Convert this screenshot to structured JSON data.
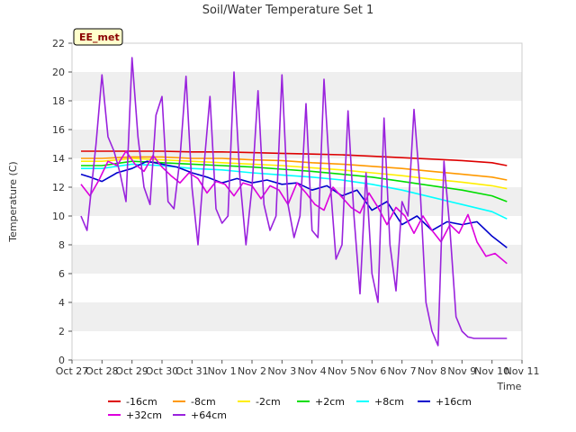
{
  "chart_data": {
    "type": "line",
    "title": "Soil/Water Temperature Set 1",
    "xlabel": "Time",
    "ylabel": "Temperature (C)",
    "site_tag": "EE_met",
    "ylim": [
      0,
      22
    ],
    "yticks": [
      0,
      2,
      4,
      6,
      8,
      10,
      12,
      14,
      16,
      18,
      20,
      22
    ],
    "xlim": [
      0,
      15
    ],
    "xticks": [
      {
        "x": 0,
        "label": "Oct 27"
      },
      {
        "x": 1,
        "label": "Oct 28"
      },
      {
        "x": 2,
        "label": "Oct 29"
      },
      {
        "x": 3,
        "label": "Oct 30"
      },
      {
        "x": 4,
        "label": "Oct 31"
      },
      {
        "x": 5,
        "label": "Nov 1"
      },
      {
        "x": 6,
        "label": "Nov 2"
      },
      {
        "x": 7,
        "label": "Nov 3"
      },
      {
        "x": 8,
        "label": "Nov 4"
      },
      {
        "x": 9,
        "label": "Nov 5"
      },
      {
        "x": 10,
        "label": "Nov 6"
      },
      {
        "x": 11,
        "label": "Nov 7"
      },
      {
        "x": 12,
        "label": "Nov 8"
      },
      {
        "x": 13,
        "label": "Nov 9"
      },
      {
        "x": 14,
        "label": "Nov 10"
      },
      {
        "x": 15,
        "label": "Nov 11"
      }
    ],
    "grid": "horizontal bands",
    "legend_position": "bottom",
    "series": [
      {
        "name": "-16cm",
        "color": "#dd0000",
        "x": [
          0.3,
          1,
          2,
          3,
          4,
          5,
          6,
          7,
          8,
          9,
          10,
          11,
          12,
          13,
          14,
          14.5
        ],
        "y": [
          14.5,
          14.5,
          14.5,
          14.5,
          14.45,
          14.45,
          14.4,
          14.35,
          14.3,
          14.25,
          14.15,
          14.05,
          13.95,
          13.85,
          13.7,
          13.5
        ]
      },
      {
        "name": "-8cm",
        "color": "#ff9900",
        "x": [
          0.3,
          1,
          2,
          3,
          4,
          5,
          6,
          7,
          8,
          9,
          10,
          11,
          12,
          13,
          14,
          14.5
        ],
        "y": [
          14.0,
          14.0,
          14.1,
          14.1,
          14.0,
          14.0,
          13.9,
          13.85,
          13.7,
          13.6,
          13.45,
          13.3,
          13.1,
          12.9,
          12.7,
          12.5
        ]
      },
      {
        "name": "-2cm",
        "color": "#ffee00",
        "x": [
          0.3,
          1,
          2,
          3,
          4,
          5,
          6,
          7,
          8,
          9,
          10,
          11,
          12,
          13,
          14,
          14.5
        ],
        "y": [
          13.8,
          13.8,
          14.0,
          13.9,
          13.8,
          13.7,
          13.6,
          13.5,
          13.35,
          13.2,
          13.0,
          12.8,
          12.55,
          12.35,
          12.1,
          11.9
        ]
      },
      {
        "name": "+2cm",
        "color": "#00dd00",
        "x": [
          0.3,
          1,
          2,
          3,
          4,
          5,
          6,
          7,
          8,
          9,
          10,
          11,
          12,
          13,
          14,
          14.5
        ],
        "y": [
          13.5,
          13.5,
          13.8,
          13.7,
          13.6,
          13.5,
          13.4,
          13.25,
          13.1,
          12.9,
          12.7,
          12.4,
          12.1,
          11.8,
          11.4,
          11.0
        ]
      },
      {
        "name": "+8cm",
        "color": "#00ffff",
        "x": [
          0.3,
          1,
          2,
          3,
          4,
          5,
          6,
          7,
          8,
          9,
          10,
          11,
          12,
          13,
          14,
          14.5
        ],
        "y": [
          13.3,
          13.3,
          13.6,
          13.5,
          13.3,
          13.2,
          13.0,
          12.85,
          12.7,
          12.5,
          12.2,
          11.8,
          11.3,
          10.8,
          10.3,
          9.8
        ]
      },
      {
        "name": "+16cm",
        "color": "#0000cc",
        "x": [
          0.3,
          0.6,
          1,
          1.5,
          2,
          2.5,
          3,
          3.5,
          4,
          4.5,
          5,
          5.5,
          6,
          6.5,
          7,
          7.5,
          8,
          8.5,
          9,
          9.5,
          10,
          10.5,
          11,
          11.5,
          12,
          12.5,
          13,
          13.5,
          14,
          14.5
        ],
        "y": [
          12.9,
          12.7,
          12.4,
          13.0,
          13.3,
          13.8,
          13.6,
          13.4,
          13.0,
          12.7,
          12.3,
          12.6,
          12.3,
          12.5,
          12.2,
          12.3,
          11.8,
          12.1,
          11.4,
          11.8,
          10.4,
          11.0,
          9.4,
          10.0,
          9.0,
          9.6,
          9.4,
          9.6,
          8.6,
          7.8
        ]
      },
      {
        "name": "+32cm",
        "color": "#dd00dd",
        "x": [
          0.3,
          0.6,
          0.9,
          1.2,
          1.5,
          1.8,
          2.1,
          2.4,
          2.7,
          3.0,
          3.3,
          3.6,
          3.9,
          4.2,
          4.5,
          4.8,
          5.1,
          5.4,
          5.7,
          6.0,
          6.3,
          6.6,
          6.9,
          7.2,
          7.5,
          7.8,
          8.1,
          8.4,
          8.7,
          9.0,
          9.3,
          9.6,
          9.9,
          10.2,
          10.5,
          10.8,
          11.1,
          11.4,
          11.7,
          12.0,
          12.3,
          12.6,
          12.9,
          13.2,
          13.5,
          13.8,
          14.1,
          14.5
        ],
        "y": [
          12.2,
          11.4,
          12.5,
          13.8,
          13.5,
          14.5,
          13.6,
          13.1,
          14.2,
          13.4,
          12.8,
          12.3,
          13.0,
          12.6,
          11.6,
          12.4,
          12.2,
          11.4,
          12.3,
          12.1,
          11.2,
          12.1,
          11.8,
          10.8,
          12.3,
          11.6,
          10.8,
          10.4,
          12.0,
          11.3,
          10.6,
          10.2,
          11.6,
          10.6,
          9.4,
          10.6,
          10.0,
          8.8,
          10.0,
          9.0,
          8.2,
          9.4,
          8.8,
          10.1,
          8.2,
          7.2,
          7.4,
          6.7
        ]
      },
      {
        "name": "+64cm",
        "color": "#9922dd",
        "x": [
          0.3,
          0.5,
          0.8,
          1.0,
          1.2,
          1.4,
          1.6,
          1.8,
          2.0,
          2.2,
          2.4,
          2.6,
          2.8,
          3.0,
          3.2,
          3.4,
          3.6,
          3.8,
          4.0,
          4.2,
          4.4,
          4.6,
          4.8,
          5.0,
          5.2,
          5.4,
          5.6,
          5.8,
          6.0,
          6.2,
          6.4,
          6.6,
          6.8,
          7.0,
          7.2,
          7.4,
          7.6,
          7.8,
          8.0,
          8.2,
          8.4,
          8.6,
          8.8,
          9.0,
          9.2,
          9.4,
          9.6,
          9.8,
          10.0,
          10.2,
          10.4,
          10.6,
          10.8,
          11.0,
          11.2,
          11.4,
          11.6,
          11.8,
          12.0,
          12.2,
          12.4,
          12.6,
          12.8,
          13.0,
          13.2,
          13.4,
          13.6,
          13.8,
          14.0,
          14.2,
          14.4,
          14.5
        ],
        "y": [
          10.0,
          9.0,
          15.0,
          19.8,
          15.5,
          14.5,
          13.0,
          11.0,
          21.0,
          15.5,
          12.0,
          10.8,
          17.0,
          18.3,
          11.0,
          10.5,
          14.0,
          19.7,
          12.0,
          8.0,
          13.5,
          18.3,
          10.5,
          9.5,
          10.0,
          20.0,
          12.5,
          8.0,
          12.0,
          18.7,
          10.8,
          9.0,
          10.0,
          19.8,
          10.8,
          8.5,
          10.0,
          17.8,
          9.0,
          8.5,
          19.5,
          12.5,
          7.0,
          8.0,
          17.3,
          10.0,
          4.6,
          13.0,
          6.0,
          4.0,
          16.8,
          8.0,
          4.8,
          11.0,
          10.0,
          17.4,
          12.0,
          4.0,
          2.0,
          1.0,
          13.8,
          9.0,
          3.0,
          2.0,
          1.6,
          1.5,
          1.5,
          1.5,
          1.5,
          1.5,
          1.5,
          1.5
        ]
      }
    ]
  }
}
